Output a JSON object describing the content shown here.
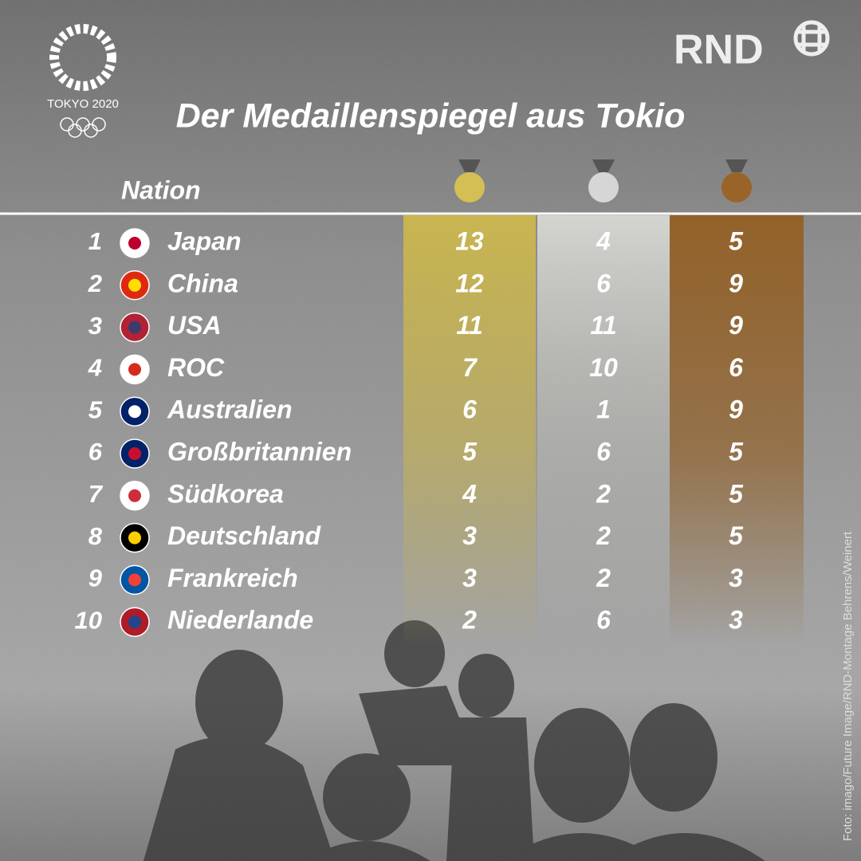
{
  "logo": {
    "text": "TOKYO 2020"
  },
  "brand": "RND",
  "title": "Der Medaillenspiegel aus Tokio",
  "table": {
    "header": "Nation",
    "rows": [
      {
        "rank": 1,
        "nation": "Japan",
        "gold": 13,
        "silver": 4,
        "bronze": 5
      },
      {
        "rank": 2,
        "nation": "China",
        "gold": 12,
        "silver": 6,
        "bronze": 9
      },
      {
        "rank": 3,
        "nation": "USA",
        "gold": 11,
        "silver": 11,
        "bronze": 9
      },
      {
        "rank": 4,
        "nation": "ROC",
        "gold": 7,
        "silver": 10,
        "bronze": 6
      },
      {
        "rank": 5,
        "nation": "Australien",
        "gold": 6,
        "silver": 1,
        "bronze": 9
      },
      {
        "rank": 6,
        "nation": "Großbritannien",
        "gold": 5,
        "silver": 6,
        "bronze": 5
      },
      {
        "rank": 7,
        "nation": "Südkorea",
        "gold": 4,
        "silver": 2,
        "bronze": 5
      },
      {
        "rank": 8,
        "nation": "Deutschland",
        "gold": 3,
        "silver": 2,
        "bronze": 5
      },
      {
        "rank": 9,
        "nation": "Frankreich",
        "gold": 3,
        "silver": 2,
        "bronze": 3
      },
      {
        "rank": 10,
        "nation": "Niederlande",
        "gold": 2,
        "silver": 6,
        "bronze": 3
      }
    ]
  },
  "credit": "Foto: imago/Future Image/RND-Montage Behrens/Weinert"
}
